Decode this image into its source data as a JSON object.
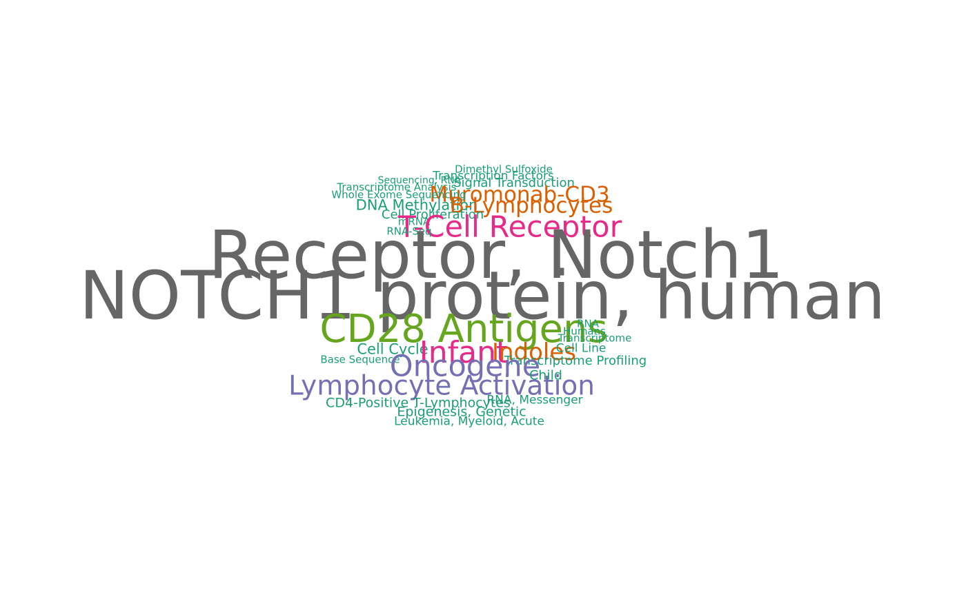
{
  "colors": {
    "gray": "#666666",
    "teal": "#1b9e77",
    "orange": "#d95f02",
    "purple": "#7570b3",
    "magenta": "#e7298a",
    "green": "#66a61e"
  },
  "words": [
    {
      "text": "Dimethyl Sulfoxide",
      "color": "teal"
    },
    {
      "text": "Transcription Factors",
      "color": "teal"
    },
    {
      "text": "Sequencing, RNA",
      "color": "teal"
    },
    {
      "text": "Signal Transduction",
      "color": "teal"
    },
    {
      "text": "Transcriptome Analysis",
      "color": "teal"
    },
    {
      "text": "Muromonab-CD3",
      "color": "orange"
    },
    {
      "text": "Whole Exome Sequencing",
      "color": "teal"
    },
    {
      "text": "DNA Methylation",
      "color": "teal"
    },
    {
      "text": "B-Lymphocytes",
      "color": "orange"
    },
    {
      "text": "Cell Proliferation",
      "color": "teal"
    },
    {
      "text": "mRNA",
      "color": "teal"
    },
    {
      "text": "T-Cell Receptor",
      "color": "magenta"
    },
    {
      "text": "RNA-Seq",
      "color": "teal"
    },
    {
      "text": "Receptor, Notch1",
      "color": "gray"
    },
    {
      "text": "NOTCH1 protein, human",
      "color": "gray"
    },
    {
      "text": "CD28 Antigens",
      "color": "green"
    },
    {
      "text": "RNA",
      "color": "teal"
    },
    {
      "text": "Humans",
      "color": "teal"
    },
    {
      "text": "Transcriptome",
      "color": "teal"
    },
    {
      "text": "Cell Cycle",
      "color": "teal"
    },
    {
      "text": "Infant",
      "color": "magenta"
    },
    {
      "text": "Indoles",
      "color": "orange"
    },
    {
      "text": "Cell Line",
      "color": "teal"
    },
    {
      "text": "Base Sequence",
      "color": "teal"
    },
    {
      "text": "Transcriptome Profiling",
      "color": "teal"
    },
    {
      "text": "Oncogene",
      "color": "purple"
    },
    {
      "text": "Child",
      "color": "teal"
    },
    {
      "text": "Lymphocyte Activation",
      "color": "purple"
    },
    {
      "text": "RNA, Messenger",
      "color": "teal"
    },
    {
      "text": "CD4-Positive T-Lymphocytes",
      "color": "teal"
    },
    {
      "text": "Epigenesis, Genetic",
      "color": "teal"
    },
    {
      "text": "Leukemia, Myeloid, Acute",
      "color": "teal"
    }
  ]
}
